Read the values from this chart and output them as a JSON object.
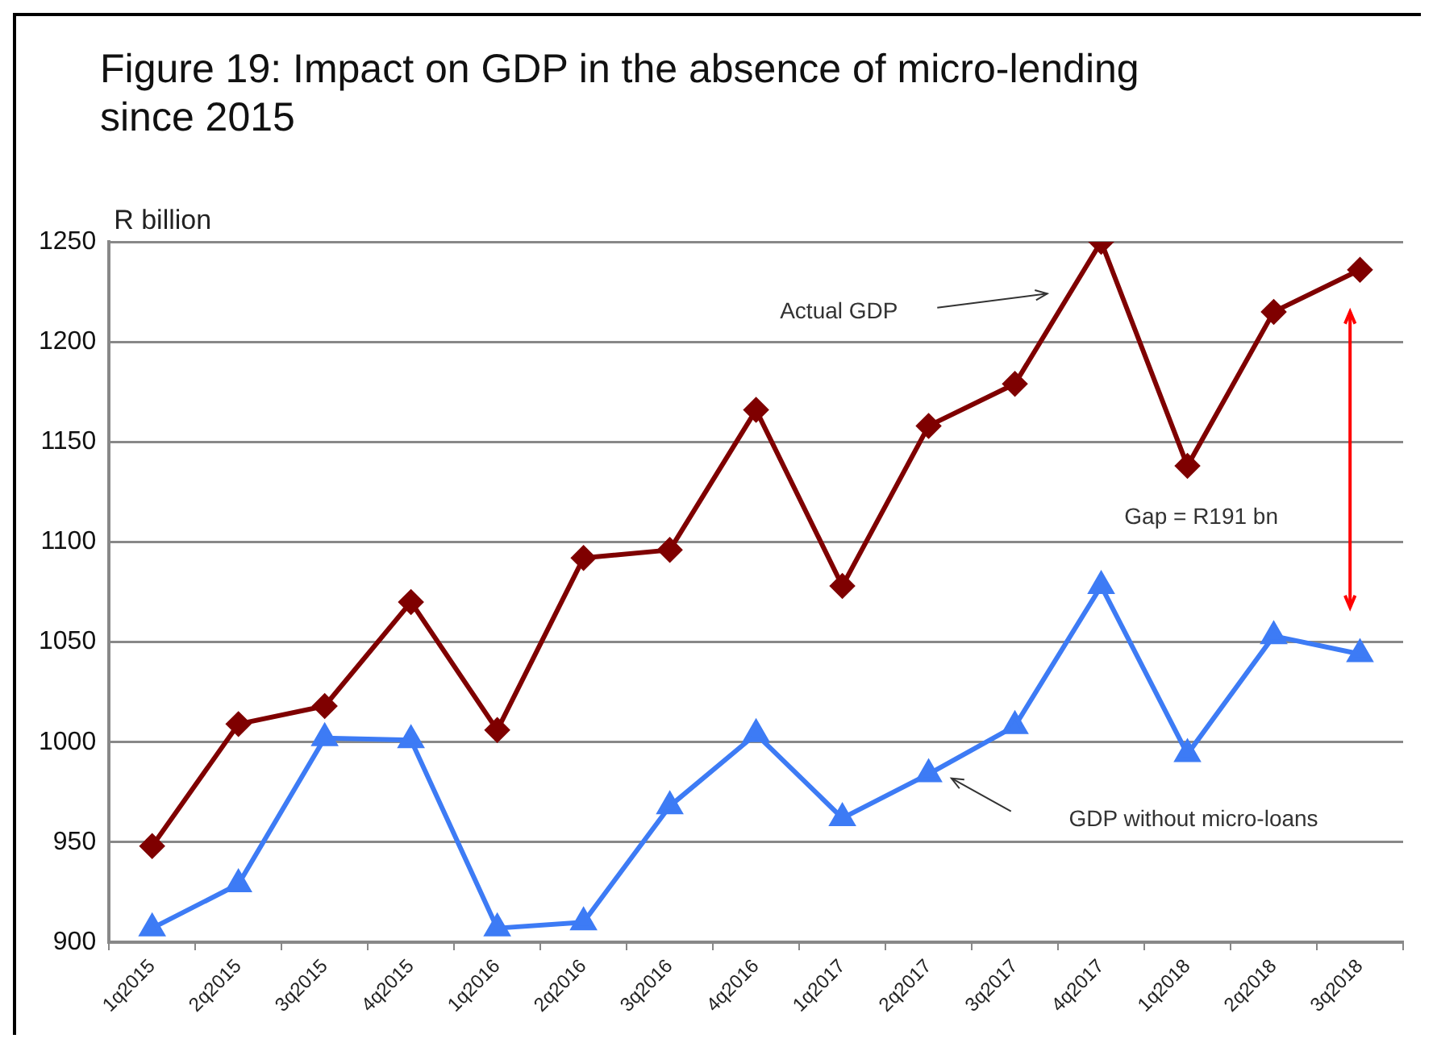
{
  "chart_data": {
    "type": "line",
    "title": "Figure 19: Impact on GDP in the absence of micro-lending since 2015",
    "ylabel": "R billion",
    "categories": [
      "1q2015",
      "2q2015",
      "3q2015",
      "4q2015",
      "1q2016",
      "2q2016",
      "3q2016",
      "4q2016",
      "1q2017",
      "2q2017",
      "3q2017",
      "4q2017",
      "1q2018",
      "2q2018",
      "3q2018"
    ],
    "series": [
      {
        "color": "#7f0000",
        "marker": "diamond",
        "values": [
          948,
          1009,
          1018,
          1070,
          1006,
          1092,
          1096,
          1166,
          1078,
          1158,
          1179,
          1250,
          1138,
          1215,
          1236
        ]
      },
      {
        "color": "#3d7bf5",
        "marker": "triangle",
        "values": [
          907,
          929,
          1002,
          1001,
          907,
          910,
          968,
          1004,
          962,
          984,
          1008,
          1078,
          994,
          1053,
          1044
        ]
      }
    ],
    "ylim": [
      900,
      1250
    ],
    "yticks": [
      900,
      950,
      1000,
      1050,
      1100,
      1150,
      1200,
      1250
    ],
    "grid": "y",
    "legend": false,
    "line_style": "solid",
    "annotations": [
      "Actual GDP",
      "GDP without micro-loans",
      "Gap = R191 bn"
    ]
  }
}
